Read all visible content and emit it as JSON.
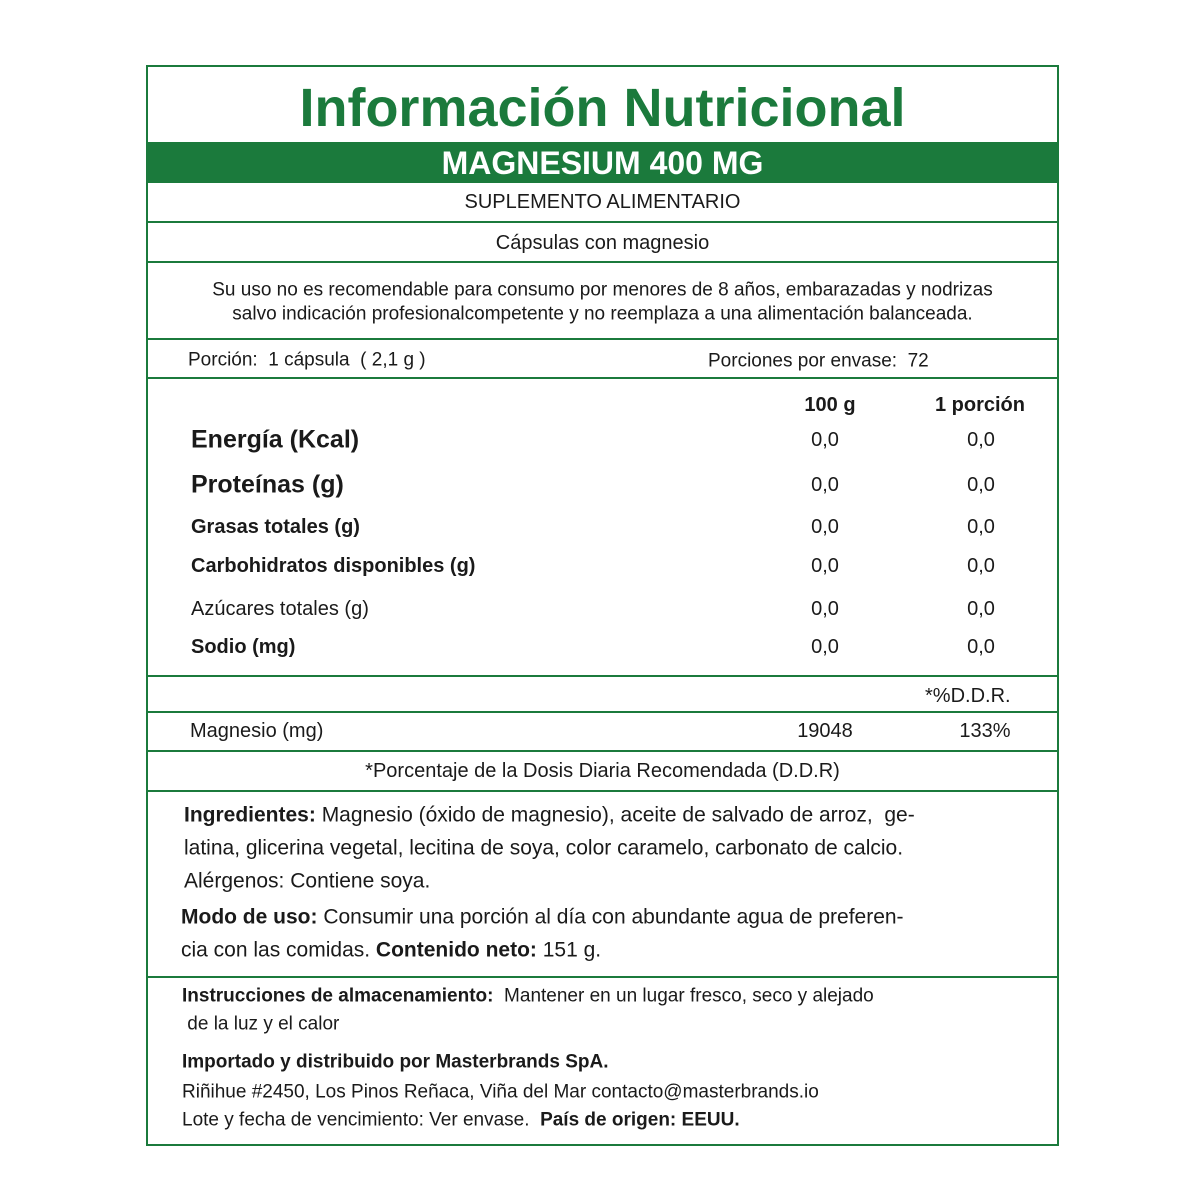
{
  "header": {
    "title": "Información Nutricional",
    "product": "MAGNESIUM 400 MG",
    "category": "SUPLEMENTO ALIMENTARIO",
    "format": "Cápsulas con magnesio"
  },
  "warning": [
    "Su uso no es recomendable para consumo por menores de 8 años, embarazadas y nodrizas",
    "salvo indicación profesionalcompetente y no reemplaza a una alimentación balanceada."
  ],
  "serving": {
    "portion": "Porción:  1 cápsula  ( 2,1 g )",
    "per_package": "Porciones por envase:  72"
  },
  "table": {
    "columns": [
      "100 g",
      "1 porción"
    ],
    "rows": [
      [
        "Energía (Kcal)",
        "0,0",
        "0,0"
      ],
      [
        "Proteínas (g)",
        "0,0",
        "0,0"
      ],
      [
        "Grasas totales (g)",
        "0,0",
        "0,0"
      ],
      [
        "Carbohidratos disponibles (g)",
        "0,0",
        "0,0"
      ],
      [
        "Azúcares totales (g)",
        "0,0",
        "0,0"
      ],
      [
        "Sodio (mg)",
        "0,0",
        "0,0"
      ]
    ]
  },
  "ddr": {
    "header": "*%D.D.R.",
    "row": [
      "Magnesio (mg)",
      "19048",
      "133%"
    ],
    "footnote": "*Porcentaje de la Dosis Diaria Recomendada (D.D.R)"
  },
  "ingredients": {
    "label": "Ingredientes:",
    "line1": " Magnesio (óxido de magnesio), aceite de salvado de arroz,  ge-",
    "line2": "latina, glicerina vegetal, lecitina de soya, color caramelo, carbonato de calcio.",
    "line3": "Alérgenos: Contiene soya."
  },
  "usage": {
    "label": "Modo de uso:",
    "line1": " Consumir una porción al día con abundante agua de preferen-",
    "line2": "cia con las comidas. ",
    "net_label": "Contenido neto:",
    "net_value": " 151 g."
  },
  "storage": {
    "label": "Instrucciones de almacenamiento:",
    "line1": "  Mantener en un lugar fresco, seco y alejado",
    "line2": " de la luz y el calor"
  },
  "importer": {
    "title": "Importado y distribuido por Masterbrands SpA.",
    "address": "Riñihue #2450, Los Pinos Reñaca, Viña del Mar contacto@masterbrands.io",
    "lot": "Lote y fecha de vencimiento: Ver envase.  ",
    "origin": "País de origen: EEUU."
  }
}
